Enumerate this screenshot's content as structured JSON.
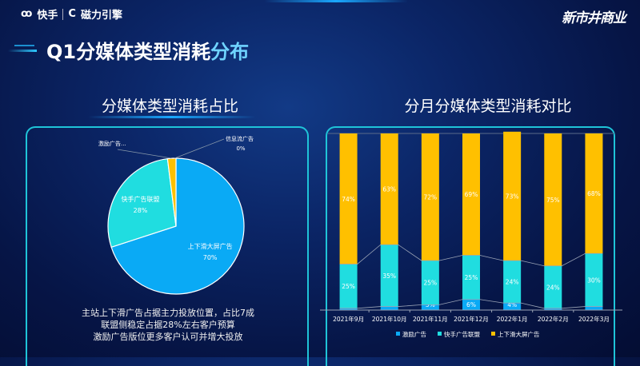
{
  "header": {
    "brand_left": "快手",
    "brand_right": "磁力引擎",
    "logo_text": "新市井商业"
  },
  "title": {
    "prefix": "Q1分媒体类型消耗",
    "highlight": "分布"
  },
  "left": {
    "subtitle": "分媒体类型消耗占比",
    "notes": [
      "主站上下滑广告占据主力投放位置，占比7成",
      "联盟侧稳定占据28%左右客户预算",
      "激励广告版位更多客户认可并增大投放"
    ]
  },
  "right": {
    "subtitle": "分月分媒体类型消耗对比"
  },
  "colors": {
    "incentive": "#0aaaf5",
    "union": "#20dde0",
    "feed": "#ffc000",
    "bg": "#061546"
  },
  "chart_data": [
    {
      "type": "pie",
      "slices": [
        {
          "name": "上下滑大屏广告",
          "value": 70,
          "label": "70%",
          "color": "#0aaaf5"
        },
        {
          "name": "快手广告联盟",
          "value": 28,
          "label": "28%",
          "color": "#20dde0"
        },
        {
          "name": "激励广告...",
          "value": 2,
          "label": "",
          "color": "#ffc000"
        },
        {
          "name": "信息流广告",
          "value": 0,
          "label": "0%",
          "color": "#ffffff"
        }
      ]
    },
    {
      "type": "bar",
      "stacked": true,
      "categories": [
        "2021年9月",
        "2021年10月",
        "2021年11月",
        "2021年12月",
        "2022年1月",
        "2022年2月",
        "2022年3月"
      ],
      "ylim": [
        0,
        100
      ],
      "legend": "bottom",
      "series": [
        {
          "name": "激励广告",
          "color": "#0aaaf5",
          "values": [
            1,
            2,
            3,
            6,
            4,
            1,
            2
          ]
        },
        {
          "name": "快手广告联盟",
          "color": "#20dde0",
          "values": [
            25,
            35,
            25,
            25,
            24,
            24,
            30
          ]
        },
        {
          "name": "上下滑大屏广告",
          "color": "#ffc000",
          "values": [
            74,
            63,
            72,
            69,
            73,
            75,
            68
          ]
        }
      ]
    }
  ]
}
